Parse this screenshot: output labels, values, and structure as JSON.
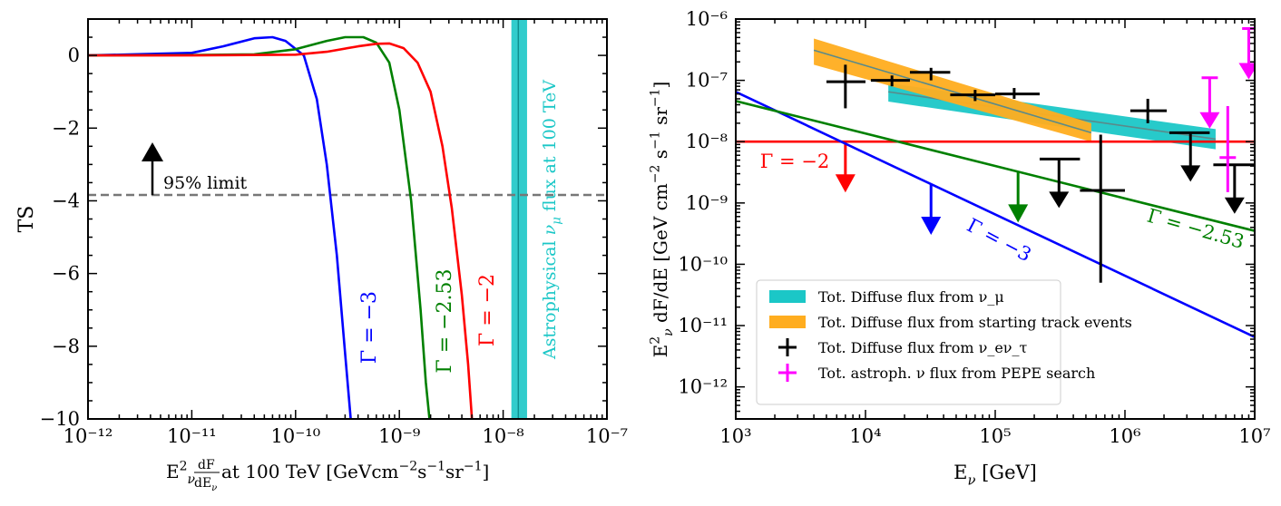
{
  "chart_data": [
    {
      "type": "line",
      "xscale": "log",
      "xlim": [
        1e-12,
        1e-07
      ],
      "ylim": [
        -10,
        1
      ],
      "xticks": [
        {
          "v": 1e-12,
          "label": "10⁻¹²"
        },
        {
          "v": 1e-11,
          "label": "10⁻¹¹"
        },
        {
          "v": 1e-10,
          "label": "10⁻¹⁰"
        },
        {
          "v": 1e-09,
          "label": "10⁻⁹"
        },
        {
          "v": 1e-08,
          "label": "10⁻⁸"
        },
        {
          "v": 1e-07,
          "label": "10⁻⁷"
        }
      ],
      "yticks": [
        {
          "v": 0,
          "label": "0"
        },
        {
          "v": -2,
          "label": "−2"
        },
        {
          "v": -4,
          "label": "−4"
        },
        {
          "v": -6,
          "label": "−6"
        },
        {
          "v": -8,
          "label": "−8"
        },
        {
          "v": -10,
          "label": "−10"
        }
      ],
      "xlabel": "E²_ν dF/dE_ν at 100 TeV [GeVcm⁻²s⁻¹sr⁻¹]",
      "ylabel": "TS",
      "series": [
        {
          "name": "Γ = −3",
          "color": "#0000ff",
          "label": "Γ = −3",
          "x": [
            1e-12,
            1e-11,
            2e-11,
            4e-11,
            6e-11,
            8e-11,
            1.2e-10,
            1.6e-10,
            2e-10,
            2.5e-10,
            3e-10,
            3.4e-10
          ],
          "y": [
            0,
            0.07,
            0.25,
            0.47,
            0.5,
            0.4,
            0.0,
            -1.2,
            -3.0,
            -5.5,
            -8.2,
            -10
          ]
        },
        {
          "name": "Γ = −2.53",
          "color": "#008000",
          "label": "Γ = −2.53",
          "x": [
            1e-12,
            1e-11,
            4e-11,
            1e-10,
            2e-10,
            3e-10,
            4.5e-10,
            6e-10,
            8e-10,
            1e-09,
            1.3e-09,
            1.6e-09,
            1.8e-09,
            1.95e-09
          ],
          "y": [
            0,
            0.01,
            0.03,
            0.17,
            0.4,
            0.5,
            0.5,
            0.35,
            -0.2,
            -1.5,
            -4.0,
            -7.0,
            -9.0,
            -10
          ]
        },
        {
          "name": "Γ = −2",
          "color": "#ff0000",
          "label": "Γ = −2",
          "x": [
            1e-12,
            1e-11,
            1e-10,
            2e-10,
            4e-10,
            6e-10,
            8e-10,
            1.1e-09,
            1.5e-09,
            2e-09,
            2.6e-09,
            3.2e-09,
            4e-09,
            4.6e-09,
            5e-09
          ],
          "y": [
            0,
            0.0,
            0.02,
            0.1,
            0.25,
            0.32,
            0.33,
            0.2,
            -0.2,
            -1.0,
            -2.5,
            -4.2,
            -6.6,
            -8.5,
            -10
          ]
        }
      ],
      "hline": {
        "y": -3.84,
        "label": "95% limit"
      },
      "band": {
        "x1": 1.2e-08,
        "x2": 1.7e-08,
        "center": 1.4e-08,
        "label": "Astrophysical ν_μ flux at 100 TeV",
        "color": "#1bc7c7"
      }
    },
    {
      "type": "line",
      "xscale": "log",
      "yscale": "log",
      "xlim": [
        1000.0,
        10000000.0
      ],
      "ylim": [
        3e-13,
        1e-06
      ],
      "xticks": [
        {
          "v": 1000.0,
          "label": "10³"
        },
        {
          "v": 10000.0,
          "label": "10⁴"
        },
        {
          "v": 100000.0,
          "label": "10⁵"
        },
        {
          "v": 1000000.0,
          "label": "10⁶"
        },
        {
          "v": 10000000.0,
          "label": "10⁷"
        }
      ],
      "yticks": [
        {
          "v": 1e-12,
          "label": "10⁻¹²"
        },
        {
          "v": 1e-11,
          "label": "10⁻¹¹"
        },
        {
          "v": 1e-10,
          "label": "10⁻¹⁰"
        },
        {
          "v": 1e-09,
          "label": "10⁻⁹"
        },
        {
          "v": 1e-08,
          "label": "10⁻⁸"
        },
        {
          "v": 1e-07,
          "label": "10⁻⁷"
        },
        {
          "v": 1e-06,
          "label": "10⁻⁶"
        }
      ],
      "xlabel": "E_ν [GeV]",
      "ylabel": "E²_ν dF/dE [GeV cm⁻² s⁻¹ sr⁻¹]",
      "limits": [
        {
          "name": "Γ = −2",
          "color": "#ff0000",
          "label": "Γ = −2",
          "x": [
            1000.0,
            10000000.0
          ],
          "y": [
            1e-08,
            1e-08
          ],
          "arrow_x": 7000.0
        },
        {
          "name": "Γ = −3",
          "color": "#0000ff",
          "label": "Γ = −3",
          "x": [
            1000.0,
            10000000.0
          ],
          "y": [
            6.5e-08,
            6.5e-12
          ],
          "arrow_x": 32000.0
        },
        {
          "name": "Γ = −2.53",
          "color": "#008000",
          "label": "Γ = −2.53",
          "x": [
            1000.0,
            10000000.0
          ],
          "y": [
            4.6e-08,
            3.5e-10
          ],
          "arrow_x": 150000.0
        }
      ],
      "bands": [
        {
          "name": "Tot. Diffuse flux from ν_μ",
          "color": "#1bc7c7",
          "x": [
            15000.0,
            5000000.0
          ],
          "lo": [
            4.5e-08,
            7.5e-09
          ],
          "hi": [
            9e-08,
            1.6e-08
          ],
          "mid": [
            6.5e-08,
            1.1e-08
          ]
        },
        {
          "name": "Tot. Diffuse flux from starting track events",
          "color": "#ffad1f",
          "x": [
            4000.0,
            550000.0
          ],
          "lo": [
            1.8e-07,
            1e-08
          ],
          "hi": [
            4.8e-07,
            2e-08
          ],
          "mid": [
            3.1e-07,
            1.4e-08
          ]
        }
      ],
      "points": [
        {
          "x": 7000.0,
          "y": 9.5e-08,
          "xerr": [
            5000.0,
            10000.0
          ],
          "yerr": [
            3.5e-08,
            1.8e-07
          ]
        },
        {
          "x": 16000.0,
          "y": 1e-07,
          "xerr": [
            11000.0,
            22000.0
          ],
          "yerr": [
            8e-08,
            1.2e-07
          ]
        },
        {
          "x": 32000.0,
          "y": 1.35e-07,
          "xerr": [
            22000.0,
            45000.0
          ],
          "yerr": [
            1e-07,
            1.6e-07
          ]
        },
        {
          "x": 70000.0,
          "y": 5.8e-08,
          "xerr": [
            45000.0,
            100000.0
          ],
          "yerr": [
            4.6e-08,
            7e-08
          ]
        },
        {
          "x": 140000.0,
          "y": 6e-08,
          "xerr": [
            100000.0,
            220000.0
          ],
          "yerr": [
            5e-08,
            7.5e-08
          ]
        },
        {
          "x": 310000.0,
          "y": 5.2e-09,
          "xerr": [
            220000.0,
            450000.0
          ],
          "yerr": [
            2.2e-09,
            5.2e-09
          ],
          "arrow": true
        },
        {
          "x": 650000.0,
          "y": 1.6e-09,
          "xerr": [
            450000.0,
            1000000.0
          ],
          "yerr": [
            5e-11,
            1.3e-08
          ]
        },
        {
          "x": 1500000.0,
          "y": 3.2e-08,
          "xerr": [
            1100000.0,
            2100000.0
          ],
          "yerr": [
            2e-08,
            5e-08
          ]
        },
        {
          "x": 3200000.0,
          "y": 1.4e-08,
          "xerr": [
            2200000.0,
            4500000.0
          ],
          "yerr": [
            6e-09,
            1.4e-08
          ],
          "arrow": true
        },
        {
          "x": 7000000.0,
          "y": 4.2e-09,
          "xerr": [
            4800000.0,
            10000000.0
          ],
          "yerr": [
            1.8e-09,
            4.2e-09
          ],
          "arrow": true
        }
      ],
      "pepe": [
        {
          "x": 4500000.0,
          "y": 1.1e-07,
          "xerr": [
            3900000.0,
            5200000.0
          ],
          "arrow": true
        },
        {
          "x": 6200000.0,
          "y": 5.5e-09,
          "yerr": [
            1.5e-09,
            3.8e-08
          ]
        },
        {
          "x": 9000000.0,
          "y": 7e-07,
          "xerr": [
            8000000.0,
            10000000.0
          ],
          "arrow": true
        }
      ],
      "legend": {
        "placement": "lower-left",
        "items": [
          {
            "label": "Tot. Diffuse flux from ν_μ",
            "kind": "patch",
            "color": "#1bc7c7"
          },
          {
            "label": "Tot. Diffuse flux from starting track events",
            "kind": "patch",
            "color": "#ffad1f"
          },
          {
            "label": "Tot. Diffuse flux from ν_eν_τ",
            "kind": "cross",
            "color": "#000000"
          },
          {
            "label": "Tot. astroph. ν flux from PEPE search",
            "kind": "cross",
            "color": "#ff00ff"
          }
        ]
      }
    }
  ]
}
